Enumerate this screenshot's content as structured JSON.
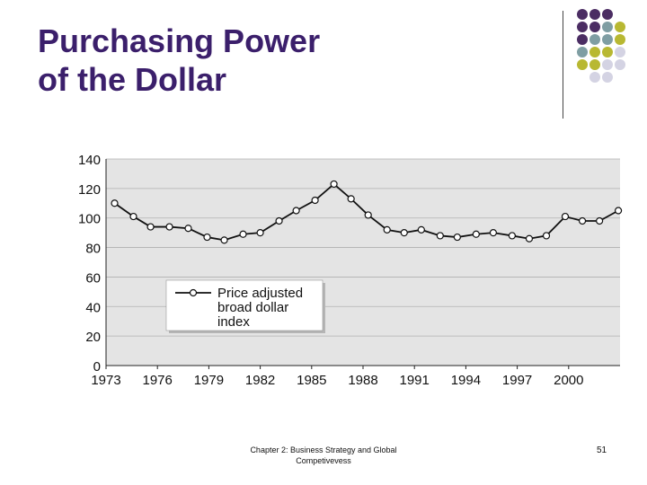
{
  "slide": {
    "title_line1": "Purchasing Power",
    "title_line2": "of the Dollar",
    "footer_line1": "Chapter 2: Business Strategy and Global",
    "footer_line2": "Competivevess",
    "page_number": "51"
  },
  "colors": {
    "title": "#3b1f6b",
    "plot_bg": "#e4e4e4",
    "dot_palette": [
      "#4b2d63",
      "#7f9ea3",
      "#b8b832",
      "#d4d3e3"
    ]
  },
  "chart_data": {
    "type": "line",
    "title": "",
    "xlabel": "",
    "ylabel": "",
    "xlim": [
      1973,
      2003
    ],
    "ylim": [
      0,
      140
    ],
    "grid": true,
    "x_ticks": [
      1973,
      1976,
      1979,
      1982,
      1985,
      1988,
      1991,
      1994,
      1997,
      2000
    ],
    "y_ticks": [
      0,
      20,
      40,
      60,
      80,
      100,
      120,
      140
    ],
    "legend": {
      "position": "middle-left",
      "label_lines": [
        "Price adjusted",
        "broad dollar",
        "index"
      ]
    },
    "series": [
      {
        "name": "Price adjusted broad dollar index",
        "x": [
          1973.5,
          1974.6,
          1975.6,
          1976.7,
          1977.8,
          1978.9,
          1979.9,
          1981.0,
          1982.0,
          1983.1,
          1984.1,
          1985.2,
          1986.3,
          1987.3,
          1988.3,
          1989.4,
          1990.4,
          1991.4,
          1992.5,
          1993.5,
          1994.6,
          1995.6,
          1996.7,
          1997.7,
          1998.7,
          1999.8,
          2000.8,
          2001.8,
          2002.9
        ],
        "values": [
          110,
          101,
          94,
          94,
          93,
          87,
          85,
          89,
          90,
          98,
          105,
          112,
          123,
          113,
          102,
          92,
          90,
          92,
          88,
          87,
          89,
          90,
          88,
          86,
          88,
          101,
          98,
          98,
          105
        ]
      }
    ]
  }
}
